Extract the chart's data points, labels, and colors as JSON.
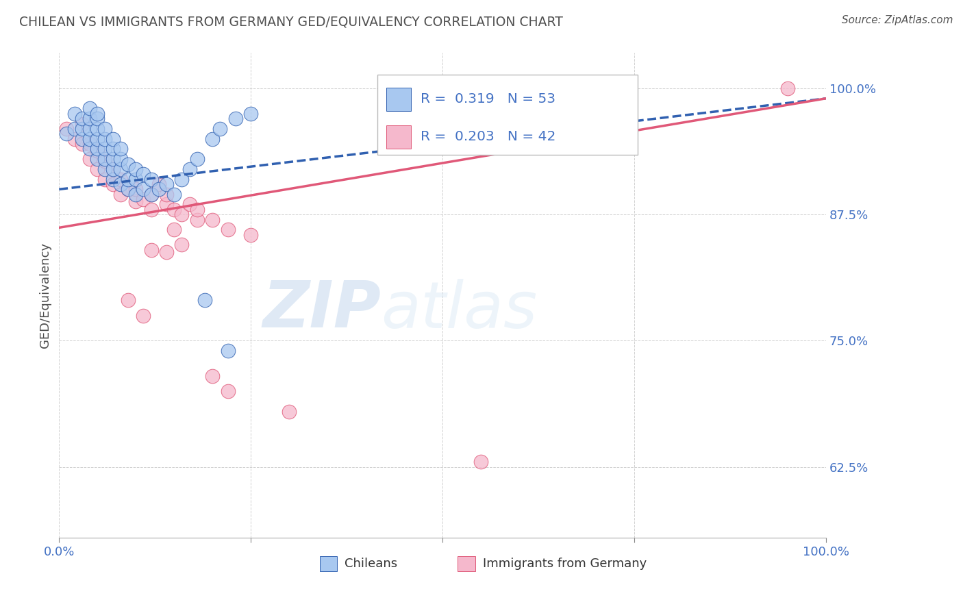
{
  "title": "CHILEAN VS IMMIGRANTS FROM GERMANY GED/EQUIVALENCY CORRELATION CHART",
  "source_text": "Source: ZipAtlas.com",
  "ylabel": "GED/Equivalency",
  "legend_label_blue": "Chileans",
  "legend_label_pink": "Immigrants from Germany",
  "r_blue": 0.319,
  "n_blue": 53,
  "r_pink": 0.203,
  "n_pink": 42,
  "xlim": [
    0.0,
    1.0
  ],
  "ylim": [
    0.555,
    1.035
  ],
  "yticks": [
    0.625,
    0.75,
    0.875,
    1.0
  ],
  "ytick_labels": [
    "62.5%",
    "75.0%",
    "87.5%",
    "100.0%"
  ],
  "xticks": [
    0.0,
    0.25,
    0.5,
    0.75,
    1.0
  ],
  "color_blue": "#a8c8f0",
  "color_pink": "#f5b8cc",
  "line_color_blue": "#3060b0",
  "line_color_pink": "#e05878",
  "tick_label_color": "#4472c4",
  "title_color": "#505050",
  "background_color": "#ffffff",
  "watermark_zip": "ZIP",
  "watermark_atlas": "atlas",
  "blue_scatter_x": [
    0.01,
    0.02,
    0.02,
    0.03,
    0.03,
    0.03,
    0.04,
    0.04,
    0.04,
    0.04,
    0.04,
    0.05,
    0.05,
    0.05,
    0.05,
    0.05,
    0.05,
    0.06,
    0.06,
    0.06,
    0.06,
    0.06,
    0.07,
    0.07,
    0.07,
    0.07,
    0.07,
    0.08,
    0.08,
    0.08,
    0.08,
    0.09,
    0.09,
    0.09,
    0.1,
    0.1,
    0.1,
    0.11,
    0.11,
    0.12,
    0.12,
    0.13,
    0.14,
    0.15,
    0.16,
    0.17,
    0.18,
    0.2,
    0.21,
    0.23,
    0.25,
    0.19,
    0.22
  ],
  "blue_scatter_y": [
    0.955,
    0.96,
    0.975,
    0.95,
    0.96,
    0.97,
    0.94,
    0.95,
    0.96,
    0.97,
    0.98,
    0.93,
    0.94,
    0.95,
    0.96,
    0.97,
    0.975,
    0.92,
    0.93,
    0.94,
    0.95,
    0.96,
    0.91,
    0.92,
    0.93,
    0.94,
    0.95,
    0.905,
    0.92,
    0.93,
    0.94,
    0.9,
    0.91,
    0.925,
    0.895,
    0.91,
    0.92,
    0.9,
    0.915,
    0.895,
    0.91,
    0.9,
    0.905,
    0.895,
    0.91,
    0.92,
    0.93,
    0.95,
    0.96,
    0.97,
    0.975,
    0.79,
    0.74
  ],
  "pink_scatter_x": [
    0.01,
    0.02,
    0.03,
    0.03,
    0.04,
    0.04,
    0.05,
    0.05,
    0.06,
    0.06,
    0.07,
    0.07,
    0.08,
    0.08,
    0.09,
    0.1,
    0.1,
    0.11,
    0.12,
    0.12,
    0.13,
    0.14,
    0.14,
    0.15,
    0.15,
    0.16,
    0.17,
    0.18,
    0.18,
    0.12,
    0.14,
    0.16,
    0.09,
    0.11,
    0.2,
    0.22,
    0.25,
    0.3,
    0.55,
    0.95,
    0.2,
    0.22
  ],
  "pink_scatter_y": [
    0.96,
    0.95,
    0.945,
    0.965,
    0.93,
    0.945,
    0.92,
    0.938,
    0.91,
    0.928,
    0.905,
    0.92,
    0.895,
    0.91,
    0.9,
    0.888,
    0.9,
    0.89,
    0.88,
    0.895,
    0.905,
    0.885,
    0.895,
    0.88,
    0.86,
    0.875,
    0.885,
    0.87,
    0.88,
    0.84,
    0.838,
    0.845,
    0.79,
    0.775,
    0.87,
    0.86,
    0.855,
    0.68,
    0.63,
    1.0,
    0.715,
    0.7
  ],
  "blue_trendline_x": [
    0.0,
    1.0
  ],
  "blue_trendline_y": [
    0.9,
    0.99
  ],
  "pink_trendline_x": [
    0.0,
    1.0
  ],
  "pink_trendline_y": [
    0.862,
    0.99
  ]
}
